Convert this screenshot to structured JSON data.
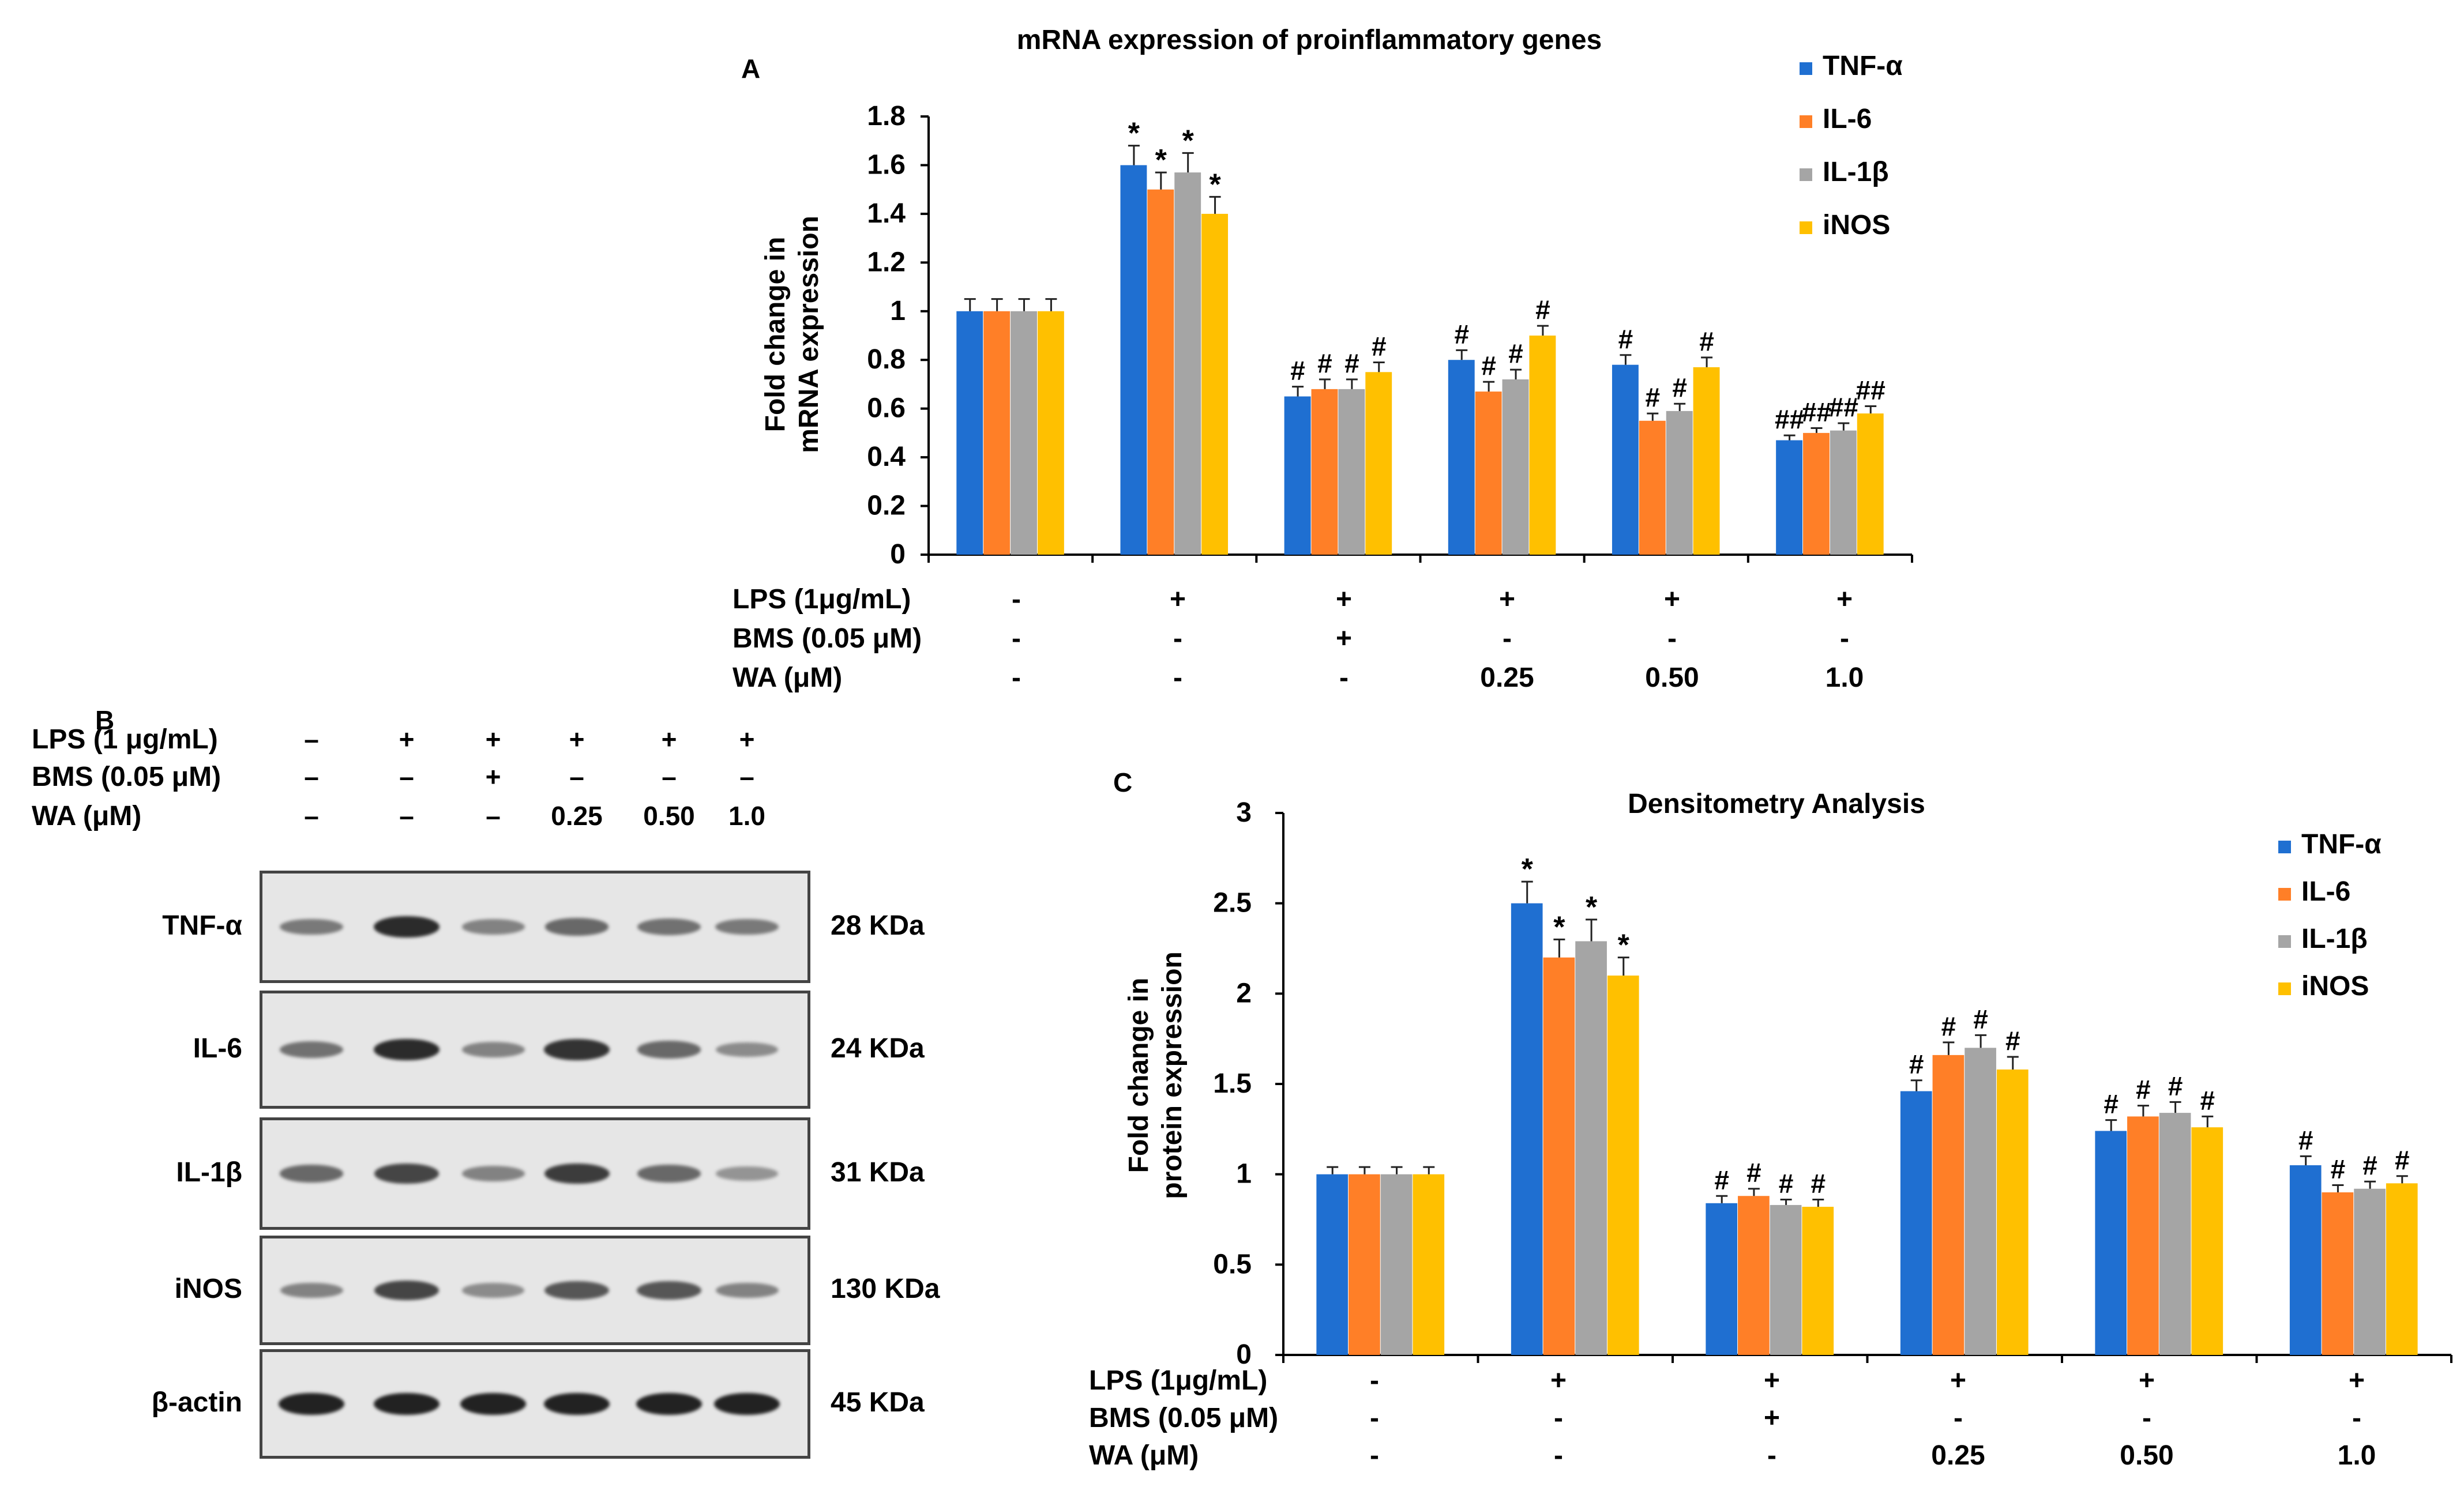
{
  "colors": {
    "tnf": "#1f6fd1",
    "il6": "#ff7f27",
    "il1b": "#a5a5a5",
    "inos": "#ffc000",
    "axis": "#000000"
  },
  "panel_letters": {
    "a": "A",
    "b": "B",
    "c": "C"
  },
  "chart_data": [
    {
      "id": "A",
      "type": "bar",
      "title": "mRNA expression of proinflammatory  genes",
      "ylabel_lines": [
        "Fold change in",
        "mRNA expression"
      ],
      "xlabel": "",
      "ylim": [
        0,
        1.8
      ],
      "yticks": [
        "0",
        "0.2",
        "0.4",
        "0.6",
        "0.8",
        "1",
        "1.2",
        "1.4",
        "1.6",
        "1.8"
      ],
      "ytick_values": [
        0,
        0.2,
        0.4,
        0.6,
        0.8,
        1.0,
        1.2,
        1.4,
        1.6,
        1.8
      ],
      "categories": [
        "1",
        "2",
        "3",
        "4",
        "5",
        "6"
      ],
      "series": [
        {
          "name": "TNF-α",
          "color_key": "tnf",
          "values": [
            1.0,
            1.6,
            0.65,
            0.8,
            0.78,
            0.47
          ],
          "errors": [
            0.05,
            0.08,
            0.04,
            0.04,
            0.04,
            0.02
          ],
          "annotations": [
            "",
            "*",
            "#",
            "#",
            "#",
            "##"
          ]
        },
        {
          "name": "IL-6",
          "color_key": "il6",
          "values": [
            1.0,
            1.5,
            0.68,
            0.67,
            0.55,
            0.5
          ],
          "errors": [
            0.05,
            0.07,
            0.04,
            0.04,
            0.03,
            0.02
          ],
          "annotations": [
            "",
            "*",
            "#",
            "#",
            "#",
            "##"
          ]
        },
        {
          "name": "IL-1β",
          "color_key": "il1b",
          "values": [
            1.0,
            1.57,
            0.68,
            0.72,
            0.59,
            0.51
          ],
          "errors": [
            0.05,
            0.08,
            0.04,
            0.04,
            0.03,
            0.03
          ],
          "annotations": [
            "",
            "*",
            "#",
            "#",
            "#",
            "##"
          ]
        },
        {
          "name": "iNOS",
          "color_key": "inos",
          "values": [
            1.0,
            1.4,
            0.75,
            0.9,
            0.77,
            0.58
          ],
          "errors": [
            0.05,
            0.07,
            0.04,
            0.04,
            0.04,
            0.03
          ],
          "annotations": [
            "",
            "*",
            "#",
            "#",
            "#",
            "##"
          ]
        }
      ],
      "treatment_labels": [
        "LPS (1μg/mL)",
        "BMS (0.05 μM)",
        "WA (μM)"
      ],
      "treatment_values": [
        [
          "-",
          "+",
          "+",
          "+",
          "+",
          "+"
        ],
        [
          "-",
          "-",
          "+",
          "-",
          "-",
          "-"
        ],
        [
          "-",
          "-",
          "-",
          "0.25",
          "0.50",
          "1.0"
        ]
      ],
      "legend_position": "top-right"
    },
    {
      "id": "C",
      "type": "bar",
      "title": "Densitometry Analysis",
      "ylabel_lines": [
        "Fold change in",
        "protein expression"
      ],
      "xlabel": "",
      "ylim": [
        0,
        3
      ],
      "yticks": [
        "0",
        "0.5",
        "1",
        "1.5",
        "2",
        "2.5",
        "3"
      ],
      "ytick_values": [
        0,
        0.5,
        1.0,
        1.5,
        2.0,
        2.5,
        3.0
      ],
      "categories": [
        "1",
        "2",
        "3",
        "4",
        "5",
        "6"
      ],
      "series": [
        {
          "name": "TNF-α",
          "color_key": "tnf",
          "values": [
            1.0,
            2.5,
            0.84,
            1.46,
            1.24,
            1.05
          ],
          "errors": [
            0.04,
            0.12,
            0.04,
            0.06,
            0.06,
            0.05
          ],
          "annotations": [
            "",
            "*",
            "#",
            "#",
            "#",
            "#"
          ]
        },
        {
          "name": "IL-6",
          "color_key": "il6",
          "values": [
            1.0,
            2.2,
            0.88,
            1.66,
            1.32,
            0.9
          ],
          "errors": [
            0.04,
            0.1,
            0.04,
            0.07,
            0.06,
            0.04
          ],
          "annotations": [
            "",
            "*",
            "#",
            "#",
            "#",
            "#"
          ]
        },
        {
          "name": "IL-1β",
          "color_key": "il1b",
          "values": [
            1.0,
            2.29,
            0.83,
            1.7,
            1.34,
            0.92
          ],
          "errors": [
            0.04,
            0.12,
            0.03,
            0.07,
            0.06,
            0.04
          ],
          "annotations": [
            "",
            "*",
            "#",
            "#",
            "#",
            "#"
          ]
        },
        {
          "name": "iNOS",
          "color_key": "inos",
          "values": [
            1.0,
            2.1,
            0.82,
            1.58,
            1.26,
            0.95
          ],
          "errors": [
            0.04,
            0.1,
            0.04,
            0.07,
            0.06,
            0.04
          ],
          "annotations": [
            "",
            "*",
            "#",
            "#",
            "#",
            "#"
          ]
        }
      ],
      "treatment_labels": [
        "LPS (1μg/mL)",
        "BMS (0.05 μM)",
        "WA (μM)"
      ],
      "treatment_values": [
        [
          "-",
          "+",
          "+",
          "+",
          "+",
          "+"
        ],
        [
          "-",
          "-",
          "+",
          "-",
          "-",
          "-"
        ],
        [
          "-",
          "-",
          "-",
          "0.25",
          "0.50",
          "1.0"
        ]
      ],
      "legend_position": "top-right"
    }
  ],
  "western_blot": {
    "treatment_labels": [
      "LPS (1 μg/mL)",
      "BMS (0.05 μM)",
      "WA (μM)"
    ],
    "treatment_values": [
      [
        "–",
        "+",
        "+",
        "+",
        "+",
        "+"
      ],
      [
        "–",
        "–",
        "+",
        "–",
        "–",
        "–"
      ],
      [
        "–",
        "–",
        "–",
        "0.25",
        "0.50",
        "1.0"
      ]
    ],
    "rows": [
      {
        "protein": "TNF-α",
        "size": "28 KDa",
        "intensities": [
          0.45,
          0.9,
          0.4,
          0.55,
          0.5,
          0.45
        ]
      },
      {
        "protein": "IL-6",
        "size": "24 KDa",
        "intensities": [
          0.5,
          0.9,
          0.4,
          0.85,
          0.55,
          0.35
        ]
      },
      {
        "protein": "IL-1β",
        "size": "31 KDa",
        "intensities": [
          0.55,
          0.75,
          0.4,
          0.8,
          0.55,
          0.3
        ]
      },
      {
        "protein": "iNOS",
        "size": "130 KDa",
        "intensities": [
          0.4,
          0.75,
          0.35,
          0.65,
          0.65,
          0.4
        ]
      },
      {
        "protein": "β-actin",
        "size": "45 KDa",
        "intensities": [
          0.95,
          0.95,
          0.95,
          0.95,
          0.95,
          0.95
        ]
      }
    ]
  }
}
